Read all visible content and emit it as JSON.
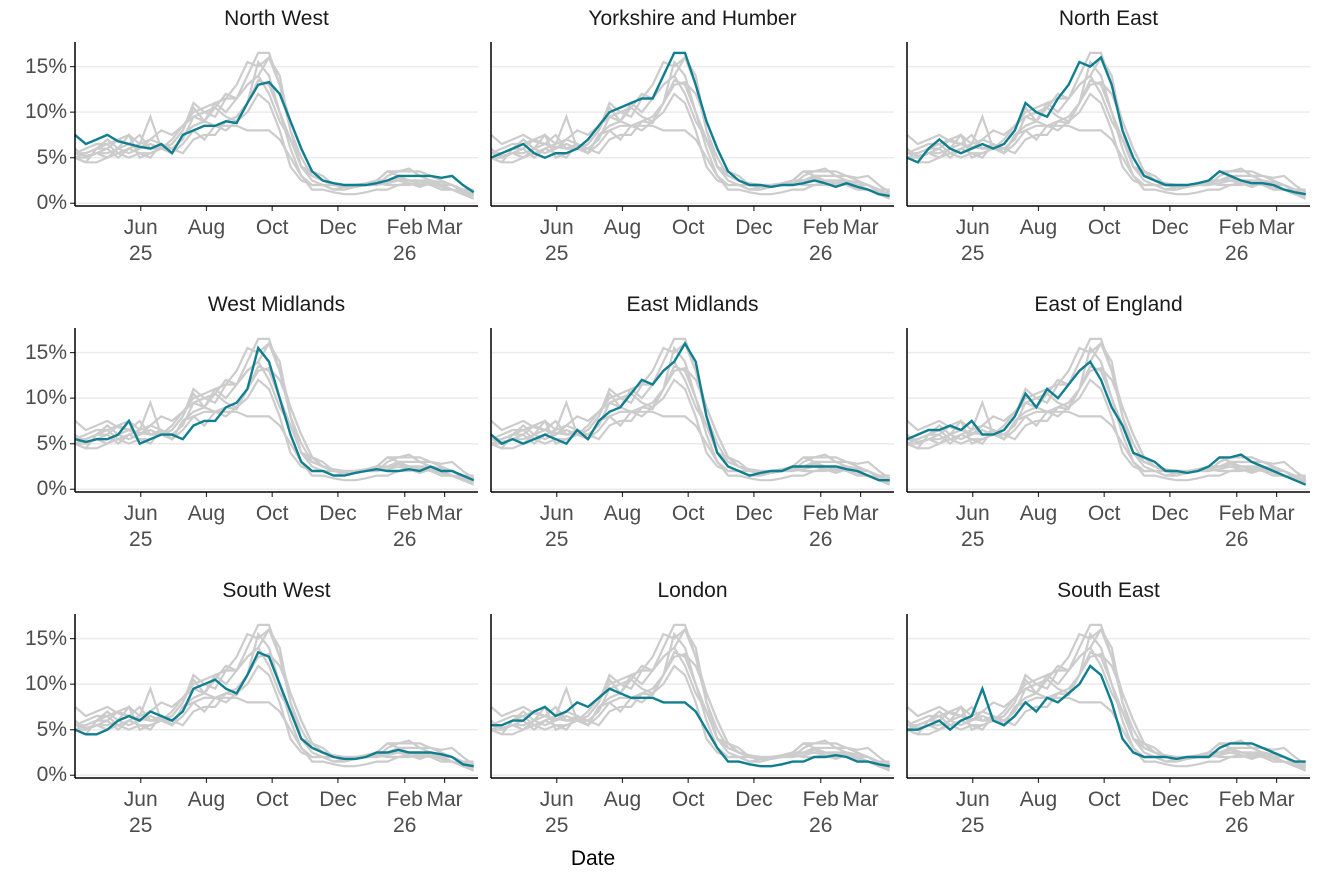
{
  "chart_data": {
    "type": "line",
    "xlabel": "Date",
    "x": [
      "2025-04-01",
      "2025-04-11",
      "2025-04-21",
      "2025-05-01",
      "2025-05-11",
      "2025-05-21",
      "2025-05-31",
      "2025-06-10",
      "2025-06-20",
      "2025-06-30",
      "2025-07-10",
      "2025-07-20",
      "2025-07-30",
      "2025-08-09",
      "2025-08-19",
      "2025-08-29",
      "2025-09-08",
      "2025-09-18",
      "2025-09-28",
      "2025-10-08",
      "2025-10-18",
      "2025-10-28",
      "2025-11-07",
      "2025-11-17",
      "2025-11-27",
      "2025-12-07",
      "2025-12-17",
      "2025-12-27",
      "2026-01-06",
      "2026-01-16",
      "2026-01-26",
      "2026-02-05",
      "2026-02-15",
      "2026-02-25",
      "2026-03-07",
      "2026-03-17",
      "2026-03-27",
      "2026-04-06"
    ],
    "xlim": [
      "2025-04-01",
      "2026-04-10"
    ],
    "xticks": [
      {
        "value": "2025-06-01",
        "label": "Jun\n25"
      },
      {
        "value": "2025-08-01",
        "label": "Aug"
      },
      {
        "value": "2025-10-01",
        "label": "Oct"
      },
      {
        "value": "2025-12-01",
        "label": "Dec"
      },
      {
        "value": "2026-02-01",
        "label": "Feb\n26"
      },
      {
        "value": "2026-03-10",
        "label": "Mar"
      }
    ],
    "ylim": [
      -0.3,
      17.7
    ],
    "yticks": [
      {
        "value": 0,
        "label": "0%"
      },
      {
        "value": 5,
        "label": "5%"
      },
      {
        "value": 10,
        "label": "10%"
      },
      {
        "value": 15,
        "label": "15%"
      }
    ],
    "grid": true,
    "highlight_color": "#0f7f8f",
    "other_color": "#cccccc",
    "series": [
      {
        "name": "North West",
        "values": [
          7.5,
          6.5,
          7,
          7.5,
          6.8,
          6.5,
          6.2,
          6,
          6.5,
          5.5,
          7.5,
          8,
          8.5,
          8.5,
          9,
          8.8,
          11,
          13,
          13.3,
          12,
          9,
          6,
          3.5,
          2.5,
          2.2,
          2,
          2,
          2,
          2.2,
          2.5,
          3,
          3,
          3,
          3,
          2.8,
          3,
          2,
          1.2
        ]
      },
      {
        "name": "Yorkshire and Humber",
        "values": [
          5,
          5.5,
          6,
          6.5,
          5.5,
          5,
          5.5,
          5.5,
          6,
          7,
          8.5,
          10,
          10.5,
          11,
          11.5,
          11.5,
          14,
          16.5,
          16.5,
          13,
          9,
          6,
          3.5,
          2.5,
          2,
          2,
          1.8,
          2,
          2,
          2.2,
          2.5,
          2.2,
          1.8,
          2.2,
          1.8,
          1.5,
          1,
          0.8
        ]
      },
      {
        "name": "North East",
        "values": [
          5,
          4.5,
          6,
          7,
          6,
          5.5,
          6,
          6.5,
          6,
          6.5,
          8,
          11,
          10,
          9.5,
          11.5,
          13,
          15.5,
          15,
          16,
          13,
          8,
          5,
          3,
          2.5,
          2,
          2,
          2,
          2.2,
          2.5,
          3.5,
          3,
          2.5,
          2.2,
          2.2,
          2,
          1.5,
          1.2,
          1
        ]
      },
      {
        "name": "West Midlands",
        "values": [
          5.5,
          5.2,
          5.5,
          5.5,
          6,
          7.5,
          5,
          5.5,
          6,
          6,
          5.5,
          7,
          7.5,
          7.5,
          9,
          9.5,
          11,
          15.5,
          14,
          10,
          6,
          3,
          2,
          2,
          1.5,
          1.5,
          1.8,
          2,
          2.2,
          2,
          2,
          2.2,
          2,
          2.5,
          2,
          2,
          1.5,
          1
        ]
      },
      {
        "name": "East Midlands",
        "values": [
          6,
          5,
          5.5,
          5,
          5.5,
          6,
          5.5,
          5,
          6.5,
          5.5,
          7.5,
          8.5,
          9,
          10.5,
          12,
          11.5,
          13,
          14,
          16,
          14,
          8,
          4,
          2.5,
          2,
          1.5,
          1.8,
          2,
          2,
          2.5,
          2.5,
          2.5,
          2.5,
          2.5,
          2.2,
          2,
          1.5,
          1,
          1
        ]
      },
      {
        "name": "East of England",
        "values": [
          5.5,
          6,
          6.5,
          6.5,
          7,
          6.5,
          7.5,
          6,
          6,
          6.5,
          8,
          10.5,
          9,
          11,
          10,
          11.5,
          13,
          14,
          12,
          9,
          7,
          4,
          3.5,
          3,
          2,
          2,
          1.8,
          2,
          2.5,
          3.5,
          3.5,
          3.8,
          3,
          2.5,
          2,
          1.5,
          1,
          0.5
        ]
      },
      {
        "name": "South West",
        "values": [
          5,
          4.5,
          4.5,
          5,
          6,
          6.5,
          6,
          7,
          6.5,
          6,
          7,
          9.5,
          10,
          10.5,
          9.5,
          9,
          11,
          13.5,
          13,
          10,
          7,
          4,
          3,
          2.5,
          2,
          1.8,
          1.8,
          2,
          2.5,
          2.5,
          2.8,
          2.5,
          2.5,
          2.5,
          2.3,
          2,
          1.2,
          1
        ]
      },
      {
        "name": "London",
        "values": [
          5.5,
          5.5,
          6,
          6,
          7,
          7.5,
          6.5,
          7,
          8,
          7.5,
          8.5,
          9.5,
          9,
          8.5,
          8.5,
          8.5,
          8,
          8,
          8,
          7,
          5,
          3,
          1.5,
          1.5,
          1.2,
          1,
          1,
          1.2,
          1.5,
          1.5,
          2,
          2,
          2.2,
          2,
          1.5,
          1.5,
          1.2,
          1
        ]
      },
      {
        "name": "South East",
        "values": [
          5,
          5,
          5.5,
          6,
          5,
          6,
          6.5,
          9.5,
          6,
          5.5,
          6.5,
          8,
          7,
          8.5,
          8,
          9,
          10,
          12,
          11,
          8,
          4,
          2.5,
          2,
          2,
          2,
          1.8,
          2,
          2,
          2,
          3,
          3.5,
          3.5,
          3.5,
          3,
          2.5,
          2,
          1.5,
          1.5
        ]
      }
    ]
  }
}
